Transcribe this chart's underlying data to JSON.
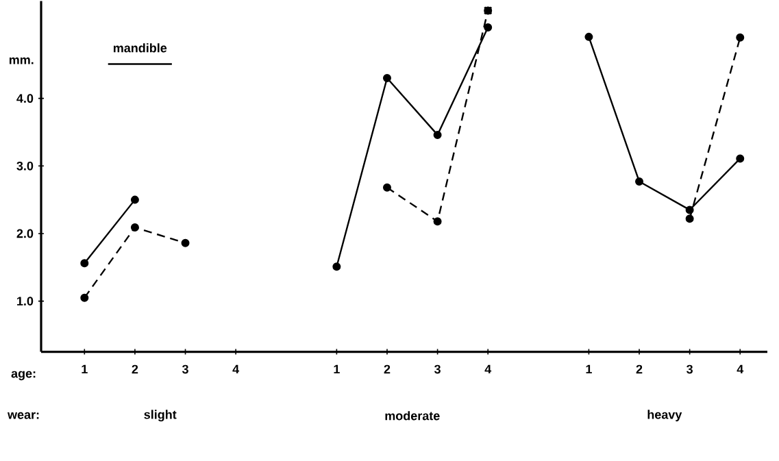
{
  "chart_data": {
    "type": "line",
    "title": "mandible",
    "ylabel": "mm.",
    "xlabel": "age:",
    "categories": [
      "1",
      "2",
      "3",
      "4",
      null,
      "1",
      "2",
      "3",
      "4",
      null,
      "1",
      "2",
      "3",
      "4"
    ],
    "annotations": [
      "wear:",
      "slight",
      "moderate",
      "heavy"
    ],
    "ylim": [
      0.25,
      5.44
    ],
    "yticks": [
      {
        "value": 1,
        "label": "1.0"
      },
      {
        "value": 2,
        "label": "2.0"
      },
      {
        "value": 3,
        "label": "3.0"
      },
      {
        "value": 4,
        "label": "4.0"
      }
    ],
    "grid": false,
    "series": [
      {
        "color": "#000000",
        "line_style": "solid",
        "marker": "circle",
        "values": [
          1.56,
          2.5,
          null,
          null,
          null,
          1.51,
          4.3,
          3.46,
          5.05,
          null,
          4.91,
          2.77,
          2.35,
          3.11
        ]
      },
      {
        "color": "#000000",
        "line_style": "dashed",
        "marker": "circle",
        "values": [
          1.05,
          2.09,
          1.86,
          null,
          null,
          null,
          2.68,
          2.18,
          5.3,
          null,
          null,
          null,
          2.22,
          4.9
        ]
      },
      {
        "type": "scatter",
        "color": "#000000",
        "marker": "cross",
        "values": [
          null,
          null,
          null,
          null,
          null,
          null,
          null,
          null,
          5.3,
          null,
          null,
          null,
          null,
          null
        ]
      }
    ]
  }
}
